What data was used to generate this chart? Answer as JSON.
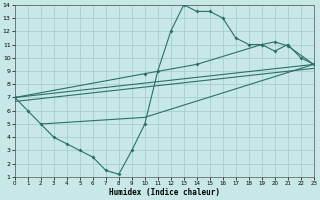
{
  "xlabel": "Humidex (Indice chaleur)",
  "xlim": [
    0,
    23
  ],
  "ylim": [
    1,
    14
  ],
  "xticks": [
    0,
    1,
    2,
    3,
    4,
    5,
    6,
    7,
    8,
    9,
    10,
    11,
    12,
    13,
    14,
    15,
    16,
    17,
    18,
    19,
    20,
    21,
    22,
    23
  ],
  "yticks": [
    1,
    2,
    3,
    4,
    5,
    6,
    7,
    8,
    9,
    10,
    11,
    12,
    13,
    14
  ],
  "bg_color": "#c8e8e8",
  "grid_color": "#a8cece",
  "line_color": "#2a7068",
  "zigzag_x": [
    0,
    1,
    2,
    3,
    4,
    5,
    6,
    7,
    8,
    9,
    10,
    11,
    12,
    13,
    14,
    15,
    16,
    17,
    18,
    19,
    20,
    21,
    22,
    23
  ],
  "zigzag_y": [
    7,
    6,
    5,
    4,
    3.5,
    3,
    2.5,
    1.5,
    1.2,
    3,
    5,
    9,
    12,
    14,
    13.5,
    13.5,
    13,
    11.5,
    11,
    11,
    10.5,
    11,
    10,
    9.5
  ],
  "line2_x": [
    0,
    10,
    14,
    19,
    20,
    21,
    23
  ],
  "line2_y": [
    7,
    8.8,
    9.5,
    11,
    11.2,
    10.9,
    9.5
  ],
  "line3_x": [
    0,
    23
  ],
  "line3_y": [
    7,
    9.5
  ],
  "line4_x": [
    0,
    23
  ],
  "line4_y": [
    6.7,
    9.2
  ],
  "line5_x": [
    2,
    10,
    23
  ],
  "line5_y": [
    5,
    5.5,
    9.5
  ]
}
